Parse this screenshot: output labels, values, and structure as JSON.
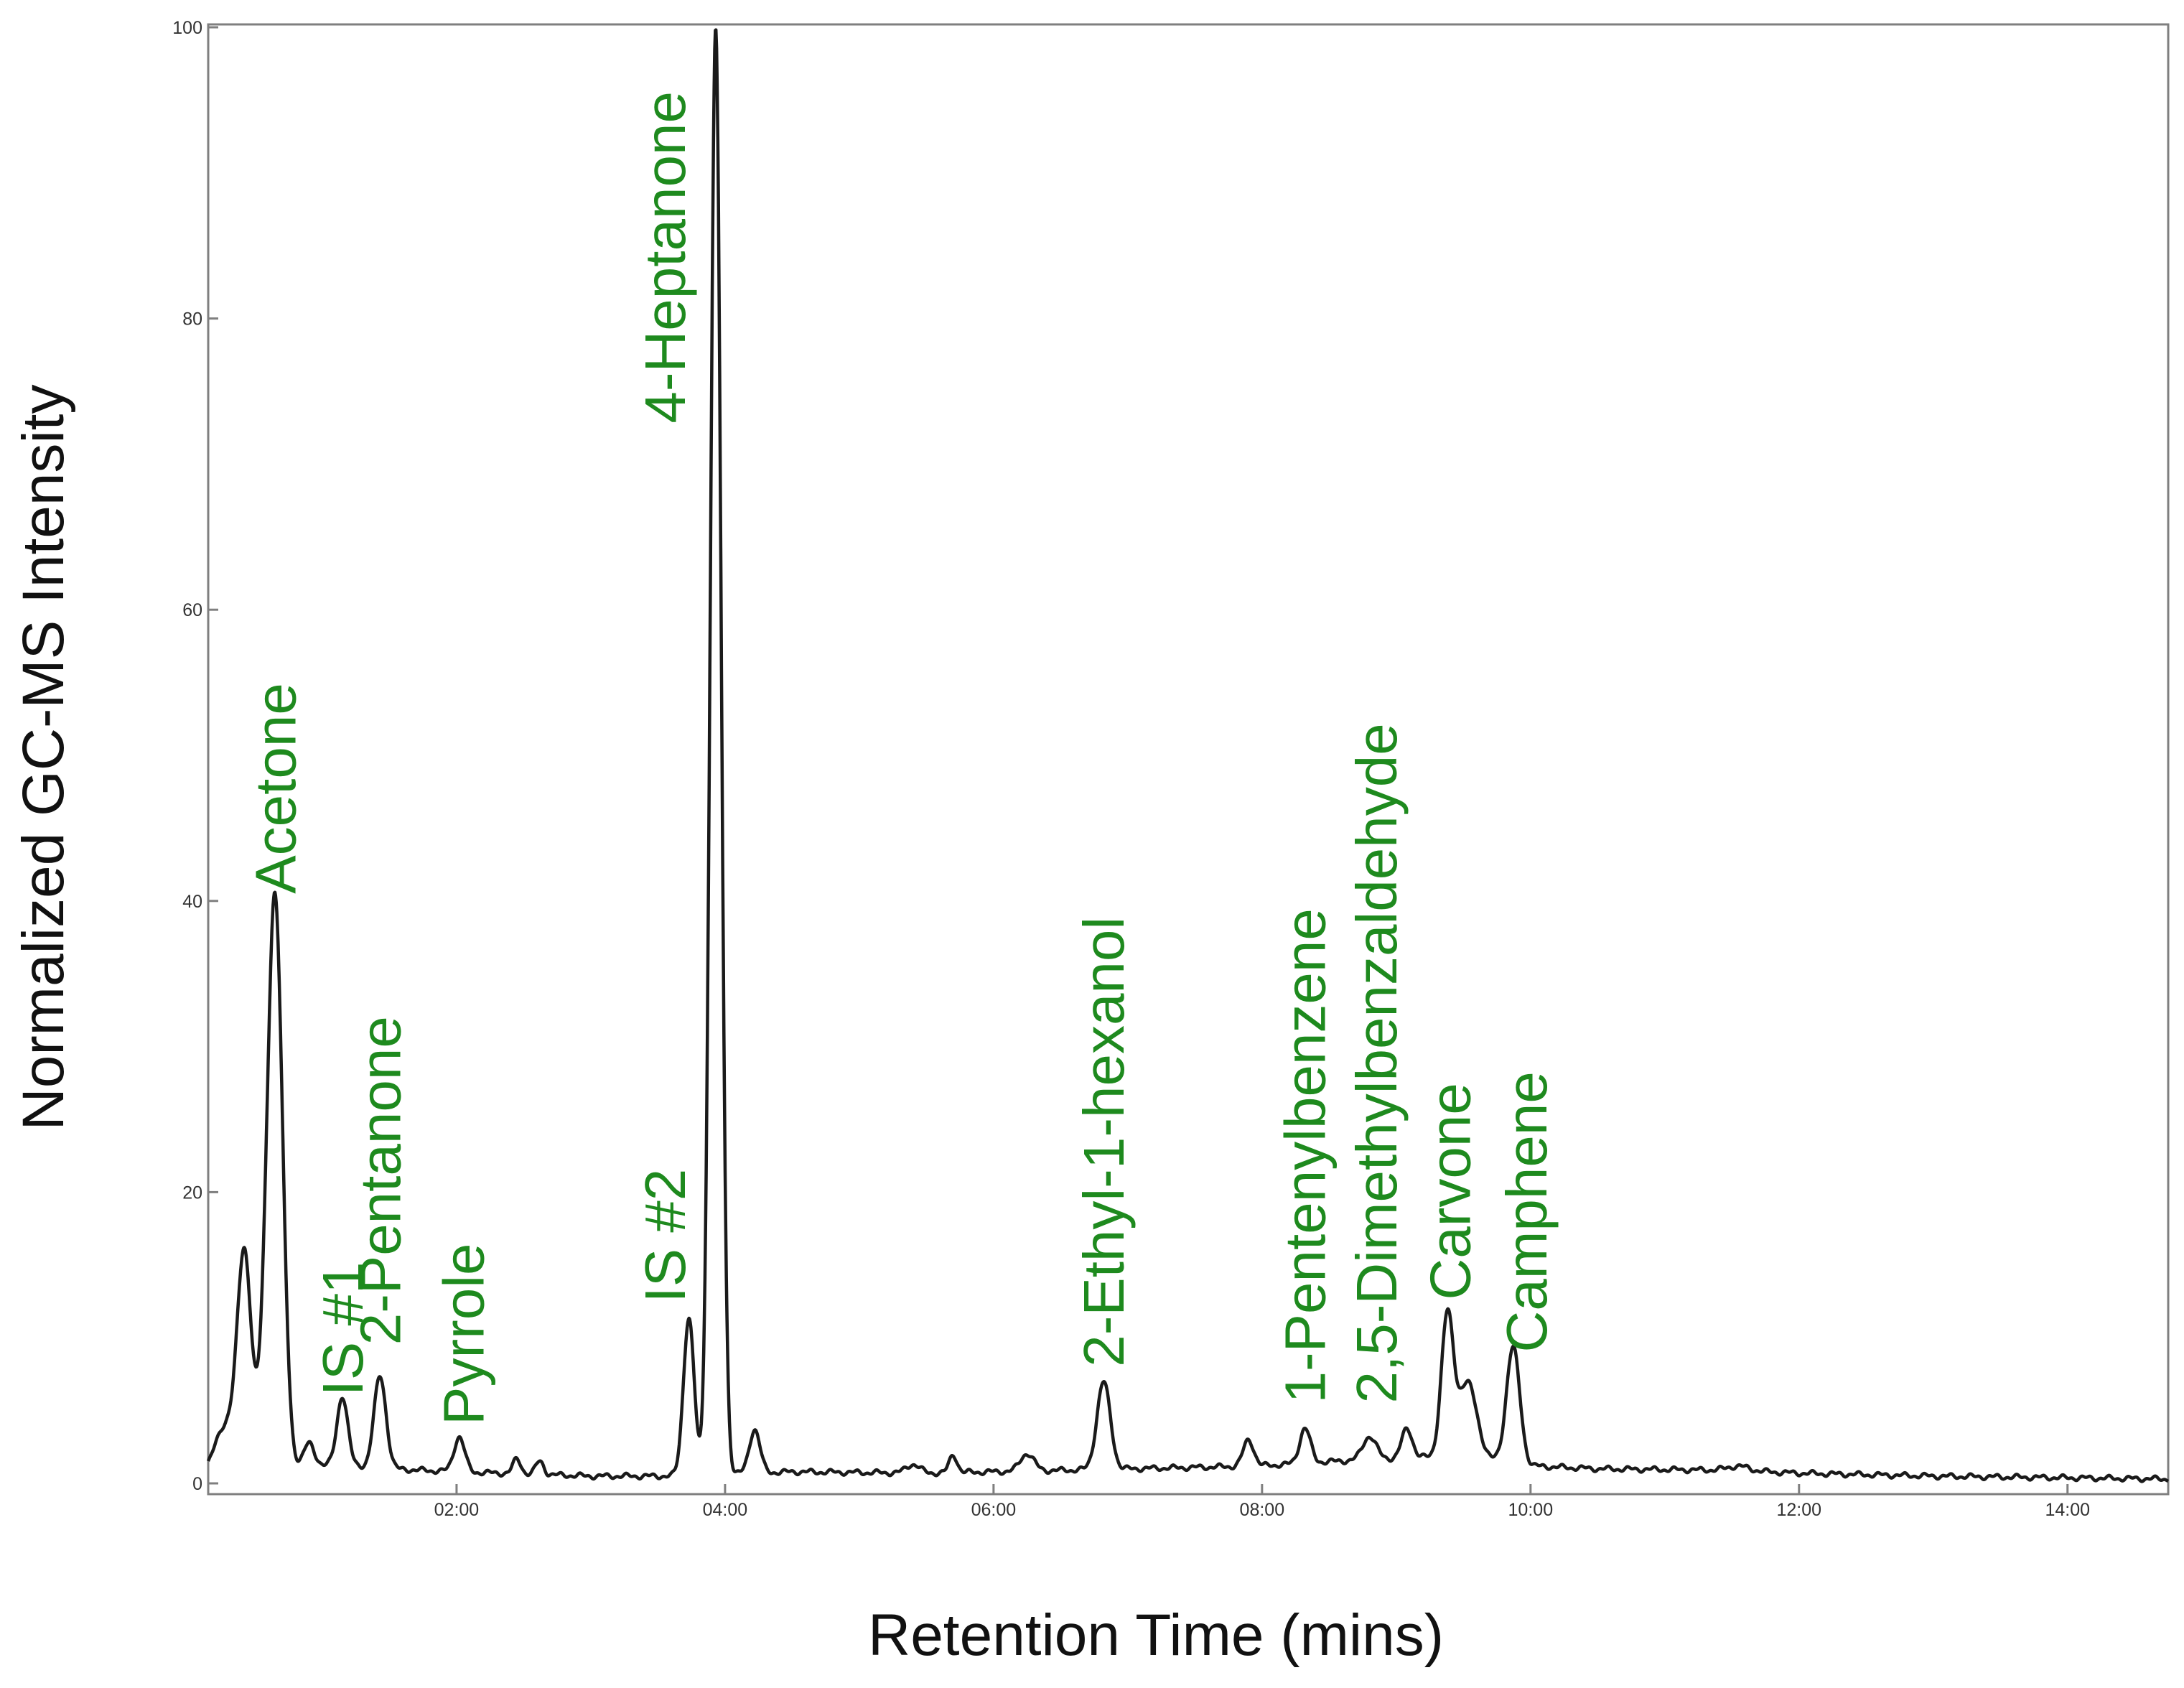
{
  "chart_data": {
    "type": "line",
    "title": "",
    "xlabel": "Retention Time (mins)",
    "ylabel": "Normalized GC-MS Intensity",
    "xlim": [
      0.15,
      14.75
    ],
    "ylim": [
      0,
      100
    ],
    "x_ticks": [
      {
        "value": 2,
        "label": "02:00"
      },
      {
        "value": 4,
        "label": "04:00"
      },
      {
        "value": 6,
        "label": "06:00"
      },
      {
        "value": 8,
        "label": "08:00"
      },
      {
        "value": 10,
        "label": "10:00"
      },
      {
        "value": 12,
        "label": "12:00"
      },
      {
        "value": 14,
        "label": "14:00"
      }
    ],
    "y_ticks": [
      {
        "value": 0,
        "label": "0"
      },
      {
        "value": 20,
        "label": "20"
      },
      {
        "value": 40,
        "label": "40"
      },
      {
        "value": 60,
        "label": "60"
      },
      {
        "value": 80,
        "label": "80"
      },
      {
        "value": 100,
        "label": "100"
      }
    ],
    "line_color": "#1a1a1a",
    "label_color": "#1e8a1e",
    "baseline": [
      [
        0.15,
        0.4
      ],
      [
        0.5,
        0.9
      ],
      [
        1.0,
        1.3
      ],
      [
        1.5,
        1.0
      ],
      [
        2.0,
        0.8
      ],
      [
        3.0,
        0.5
      ],
      [
        3.6,
        0.5
      ],
      [
        4.5,
        0.8
      ],
      [
        5.5,
        0.7
      ],
      [
        6.5,
        0.9
      ],
      [
        7.5,
        1.1
      ],
      [
        8.0,
        1.2
      ],
      [
        8.5,
        1.5
      ],
      [
        9.2,
        1.8
      ],
      [
        9.6,
        1.7
      ],
      [
        10.0,
        1.2
      ],
      [
        10.5,
        1.0
      ],
      [
        11.5,
        0.9
      ],
      [
        12.0,
        0.7
      ],
      [
        13.0,
        0.5
      ],
      [
        14.75,
        0.3
      ]
    ],
    "peaks": [
      {
        "x": 0.3,
        "height": 3.5,
        "width": 0.1
      },
      {
        "x": 0.42,
        "height": 13.5,
        "width": 0.05
      },
      {
        "x": 0.58,
        "height": 5.0,
        "width": 0.06
      },
      {
        "x": 0.65,
        "height": 37.0,
        "width": 0.055
      },
      {
        "x": 0.9,
        "height": 1.5,
        "width": 0.04
      },
      {
        "x": 1.15,
        "height": 4.8,
        "width": 0.04
      },
      {
        "x": 1.43,
        "height": 6.3,
        "width": 0.045
      },
      {
        "x": 2.02,
        "height": 2.4,
        "width": 0.04
      },
      {
        "x": 2.45,
        "height": 1.0,
        "width": 0.03
      },
      {
        "x": 2.62,
        "height": 0.9,
        "width": 0.03
      },
      {
        "x": 3.73,
        "height": 10.8,
        "width": 0.04
      },
      {
        "x": 3.93,
        "height": 99.3,
        "width": 0.04
      },
      {
        "x": 4.22,
        "height": 3.0,
        "width": 0.04
      },
      {
        "x": 5.4,
        "height": 0.6,
        "width": 0.05
      },
      {
        "x": 5.7,
        "height": 1.2,
        "width": 0.03
      },
      {
        "x": 6.25,
        "height": 1.2,
        "width": 0.05
      },
      {
        "x": 6.82,
        "height": 6.0,
        "width": 0.05
      },
      {
        "x": 7.9,
        "height": 1.8,
        "width": 0.04
      },
      {
        "x": 8.32,
        "height": 2.4,
        "width": 0.04
      },
      {
        "x": 8.8,
        "height": 1.6,
        "width": 0.05
      },
      {
        "x": 9.08,
        "height": 2.0,
        "width": 0.04
      },
      {
        "x": 9.38,
        "height": 9.6,
        "width": 0.045
      },
      {
        "x": 9.53,
        "height": 5.2,
        "width": 0.07
      },
      {
        "x": 9.87,
        "height": 8.0,
        "width": 0.05
      },
      {
        "x": 11.55,
        "height": 0.3,
        "width": 0.08
      }
    ],
    "annotations": [
      {
        "label": "Acetone",
        "x": 0.65,
        "y": 40.5
      },
      {
        "label": "IS #1",
        "x": 1.15,
        "y": 6.0
      },
      {
        "label": "2-Pentanone",
        "x": 1.43,
        "y": 9.5
      },
      {
        "label": "Pyrrole",
        "x": 2.05,
        "y": 4.0
      },
      {
        "label": "IS #2",
        "x": 3.55,
        "y": 12.4
      },
      {
        "label": "4-Heptanone",
        "x": 3.55,
        "y": 72.8
      },
      {
        "label": "2-Ethyl-1-hexanol",
        "x": 6.82,
        "y": 8.0
      },
      {
        "label": "1-Pentenylbenzene",
        "x": 8.32,
        "y": 5.5
      },
      {
        "label": "2,5-Dimethylbenzaldehyde",
        "x": 8.85,
        "y": 5.5
      },
      {
        "label": "Carvone",
        "x": 9.4,
        "y": 12.6
      },
      {
        "label": "Camphene",
        "x": 9.97,
        "y": 9.0
      }
    ]
  }
}
